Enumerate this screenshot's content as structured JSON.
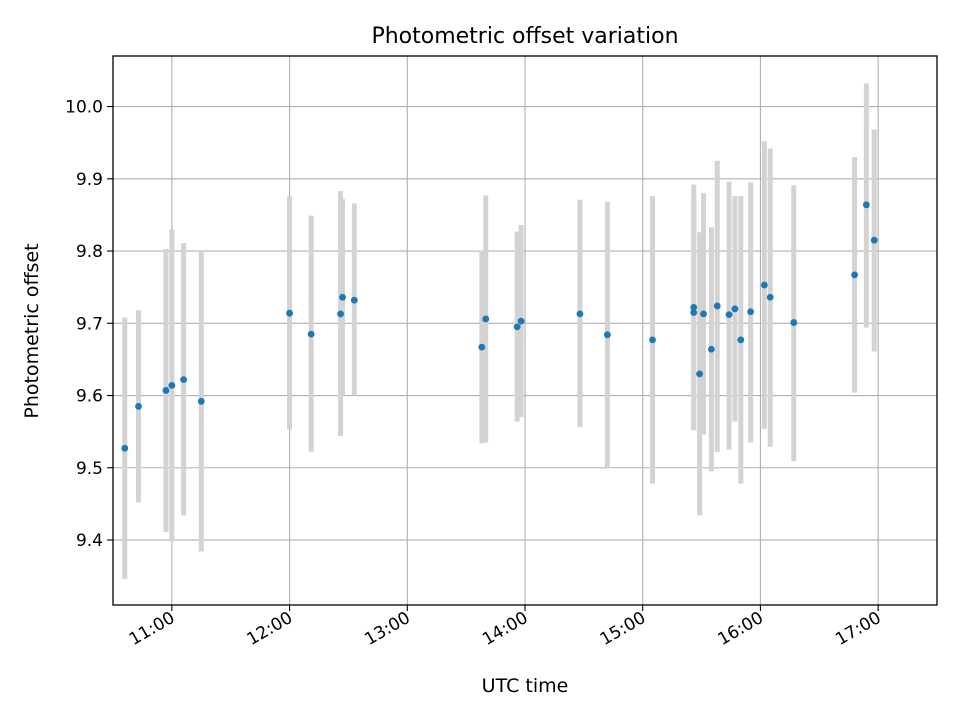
{
  "chart_data": {
    "type": "scatter",
    "title": "Photometric offset variation",
    "xlabel": "UTC time",
    "ylabel": "Photometric offset",
    "x_ticks": [
      "11:00",
      "12:00",
      "13:00",
      "14:00",
      "15:00",
      "16:00",
      "17:00"
    ],
    "y_ticks": [
      "9.4",
      "9.5",
      "9.6",
      "9.7",
      "9.8",
      "9.9",
      "10.0"
    ],
    "xlim": [
      "10:30",
      "17:30"
    ],
    "ylim": [
      9.31,
      10.07
    ],
    "grid": true,
    "points": [
      {
        "x": "10:36",
        "y": 9.527,
        "ylow": 9.346,
        "yhigh": 9.708
      },
      {
        "x": "10:43",
        "y": 9.585,
        "ylow": 9.452,
        "yhigh": 9.718
      },
      {
        "x": "10:57",
        "y": 9.607,
        "ylow": 9.411,
        "yhigh": 9.803
      },
      {
        "x": "11:00",
        "y": 9.614,
        "ylow": 9.398,
        "yhigh": 9.83
      },
      {
        "x": "11:06",
        "y": 9.622,
        "ylow": 9.434,
        "yhigh": 9.811
      },
      {
        "x": "11:15",
        "y": 9.592,
        "ylow": 9.384,
        "yhigh": 9.8
      },
      {
        "x": "12:00",
        "y": 9.714,
        "ylow": 9.553,
        "yhigh": 9.876
      },
      {
        "x": "12:11",
        "y": 9.685,
        "ylow": 9.522,
        "yhigh": 9.849
      },
      {
        "x": "12:26",
        "y": 9.713,
        "ylow": 9.544,
        "yhigh": 9.883
      },
      {
        "x": "12:27",
        "y": 9.736,
        "ylow": 9.6,
        "yhigh": 9.872
      },
      {
        "x": "12:33",
        "y": 9.732,
        "ylow": 9.6,
        "yhigh": 9.866
      },
      {
        "x": "13:38",
        "y": 9.667,
        "ylow": 9.534,
        "yhigh": 9.801
      },
      {
        "x": "13:40",
        "y": 9.706,
        "ylow": 9.535,
        "yhigh": 9.877
      },
      {
        "x": "13:56",
        "y": 9.695,
        "ylow": 9.564,
        "yhigh": 9.827
      },
      {
        "x": "13:58",
        "y": 9.703,
        "ylow": 9.57,
        "yhigh": 9.836
      },
      {
        "x": "14:28",
        "y": 9.713,
        "ylow": 9.556,
        "yhigh": 9.871
      },
      {
        "x": "14:42",
        "y": 9.684,
        "ylow": 9.5,
        "yhigh": 9.868
      },
      {
        "x": "15:05",
        "y": 9.677,
        "ylow": 9.478,
        "yhigh": 9.876
      },
      {
        "x": "15:26",
        "y": 9.715,
        "ylow": 9.552,
        "yhigh": 9.877
      },
      {
        "x": "15:26",
        "y": 9.722,
        "ylow": 9.552,
        "yhigh": 9.892
      },
      {
        "x": "15:29",
        "y": 9.63,
        "ylow": 9.434,
        "yhigh": 9.826
      },
      {
        "x": "15:31",
        "y": 9.713,
        "ylow": 9.546,
        "yhigh": 9.88
      },
      {
        "x": "15:35",
        "y": 9.664,
        "ylow": 9.495,
        "yhigh": 9.833
      },
      {
        "x": "15:38",
        "y": 9.724,
        "ylow": 9.522,
        "yhigh": 9.925
      },
      {
        "x": "15:44",
        "y": 9.712,
        "ylow": 9.525,
        "yhigh": 9.896
      },
      {
        "x": "15:47",
        "y": 9.72,
        "ylow": 9.564,
        "yhigh": 9.876
      },
      {
        "x": "15:50",
        "y": 9.677,
        "ylow": 9.478,
        "yhigh": 9.876
      },
      {
        "x": "15:55",
        "y": 9.716,
        "ylow": 9.535,
        "yhigh": 9.895
      },
      {
        "x": "16:02",
        "y": 9.753,
        "ylow": 9.554,
        "yhigh": 9.952
      },
      {
        "x": "16:05",
        "y": 9.736,
        "ylow": 9.529,
        "yhigh": 9.942
      },
      {
        "x": "16:17",
        "y": 9.701,
        "ylow": 9.509,
        "yhigh": 9.891
      },
      {
        "x": "16:48",
        "y": 9.767,
        "ylow": 9.604,
        "yhigh": 9.93
      },
      {
        "x": "16:54",
        "y": 9.864,
        "ylow": 9.694,
        "yhigh": 10.032
      },
      {
        "x": "16:58",
        "y": 9.815,
        "ylow": 9.661,
        "yhigh": 9.968
      }
    ],
    "colors": {
      "point": "#1f77b4",
      "errorbar": "#d3d3d3",
      "grid": "#b0b0b0"
    }
  }
}
